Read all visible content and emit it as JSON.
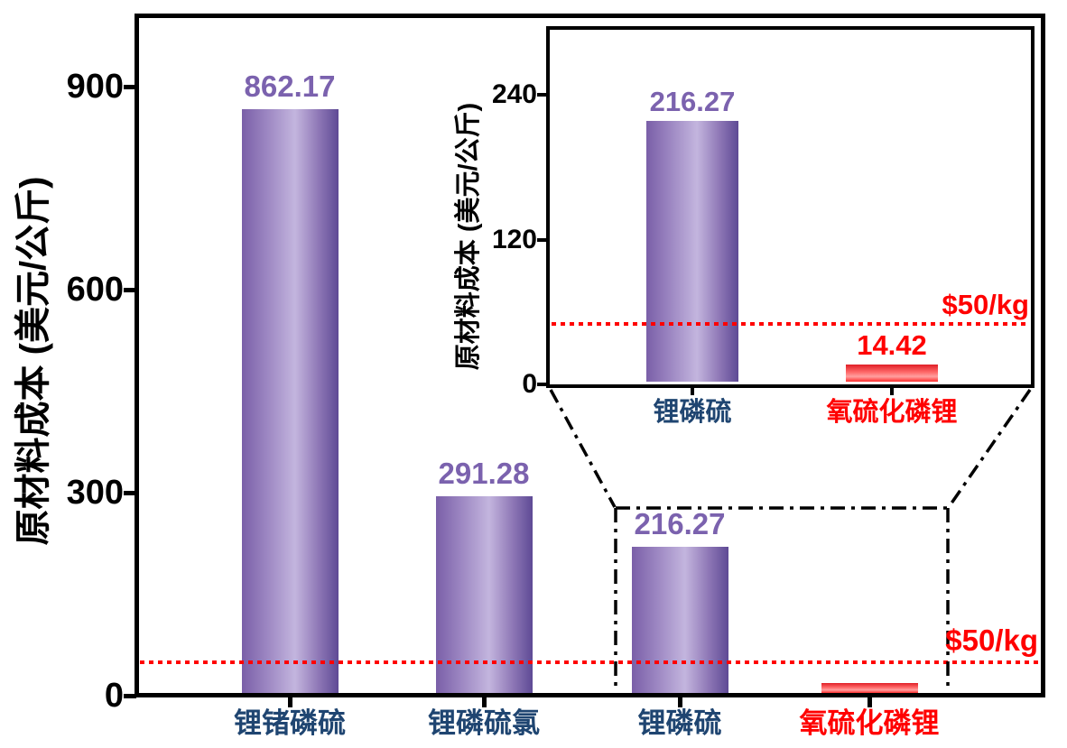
{
  "figure": {
    "description_note": "",
    "ref_label": "$50/kg"
  },
  "colors": {
    "bar_purple_edge": "#5e4a95",
    "bar_purple_light": "#c3b5de",
    "bar_red": "#ff2e2e",
    "value_purple": "#7b62ae",
    "value_red": "#ff0000",
    "category_navy": "#1f4571",
    "category_red": "#ff0000",
    "ref_red": "#ff0000",
    "axis_black": "#000000"
  },
  "chart_data": [
    {
      "id": "main",
      "type": "bar",
      "title": "",
      "xlabel": "",
      "ylabel": "原材料成本 (美元/公斤)",
      "ylim": [
        0,
        1000
      ],
      "yticks": [
        0,
        300,
        600,
        900
      ],
      "grid": false,
      "legend": "none",
      "categories": [
        "锂锗磷硫",
        "锂磷硫氯",
        "锂磷硫",
        "氧硫化磷锂"
      ],
      "values": [
        862.17,
        291.28,
        216.27,
        14.42
      ],
      "value_labels": [
        "862.17",
        "291.28",
        "216.27",
        ""
      ],
      "bar_colors": [
        "purple",
        "purple",
        "purple",
        "red"
      ],
      "category_colors": [
        "navy",
        "navy",
        "navy",
        "red"
      ],
      "ref_line": {
        "value": 50,
        "label": "$50/kg",
        "color": "#ff0000",
        "style": "dotted"
      },
      "annotations": [
        "dash-dot zoom region around last two bars connected to inset"
      ]
    },
    {
      "id": "inset",
      "type": "bar",
      "title": "",
      "xlabel": "",
      "ylabel": "原材料成本 (美元/公斤)",
      "ylim": [
        0,
        300
      ],
      "yticks": [
        0,
        120,
        240
      ],
      "grid": false,
      "legend": "none",
      "categories": [
        "锂磷硫",
        "氧硫化磷锂"
      ],
      "values": [
        216.27,
        14.42
      ],
      "value_labels": [
        "216.27",
        "14.42"
      ],
      "bar_colors": [
        "purple",
        "red"
      ],
      "category_colors": [
        "navy",
        "red"
      ],
      "ref_line": {
        "value": 50,
        "label": "$50/kg",
        "color": "#ff0000",
        "style": "dotted"
      }
    }
  ]
}
